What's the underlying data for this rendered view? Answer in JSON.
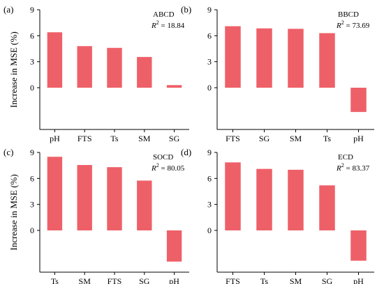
{
  "figure": {
    "ylabel_shared": "Increase in MSE (%)",
    "bar_color": "#ee6068"
  },
  "chart_data": [
    {
      "type": "bar",
      "panel_label": "(a)",
      "annotation": {
        "name": "ABCD",
        "r2_label": "R",
        "r2_sup": "2",
        "r2_value": " = 18.84"
      },
      "categories": [
        "pH",
        "FTS",
        "Ts",
        "SM",
        "SG"
      ],
      "values": [
        6.4,
        4.8,
        4.6,
        3.55,
        0.3
      ],
      "yticks": [
        0,
        3,
        6,
        9
      ],
      "ylim": [
        -2.8,
        9
      ],
      "ylabel": "Increase in MSE (%)",
      "grid": false
    },
    {
      "type": "bar",
      "panel_label": "(b)",
      "annotation": {
        "name": "BBCD",
        "r2_label": "R",
        "r2_sup": "2",
        "r2_value": " = 73.69"
      },
      "categories": [
        "FTS",
        "SG",
        "SM",
        "Ts",
        "pH"
      ],
      "values": [
        7.1,
        6.85,
        6.8,
        6.3,
        -2.8
      ],
      "yticks": [
        0,
        3,
        6,
        9
      ],
      "ylim": [
        -2.8,
        9
      ],
      "ylabel": "",
      "grid": false
    },
    {
      "type": "bar",
      "panel_label": "(c)",
      "annotation": {
        "name": "SOCD",
        "r2_label": "R",
        "r2_sup": "2",
        "r2_value": " = 80.05"
      },
      "categories": [
        "Ts",
        "SM",
        "FTS",
        "SG",
        "pH"
      ],
      "values": [
        8.5,
        7.55,
        7.3,
        5.75,
        -3.6
      ],
      "yticks": [
        0,
        3,
        6,
        9
      ],
      "ylim": [
        -3.6,
        9
      ],
      "ylabel": "Increase in MSE (%)",
      "grid": false
    },
    {
      "type": "bar",
      "panel_label": "(d)",
      "annotation": {
        "name": "ECD",
        "r2_label": "R",
        "r2_sup": "2",
        "r2_value": " = 83.37"
      },
      "categories": [
        "FTS",
        "Ts",
        "SM",
        "SG",
        "pH"
      ],
      "values": [
        7.85,
        7.1,
        7.0,
        5.2,
        -3.5
      ],
      "yticks": [
        0,
        3,
        6,
        9
      ],
      "ylim": [
        -3.6,
        9
      ],
      "ylabel": "",
      "grid": false
    }
  ]
}
